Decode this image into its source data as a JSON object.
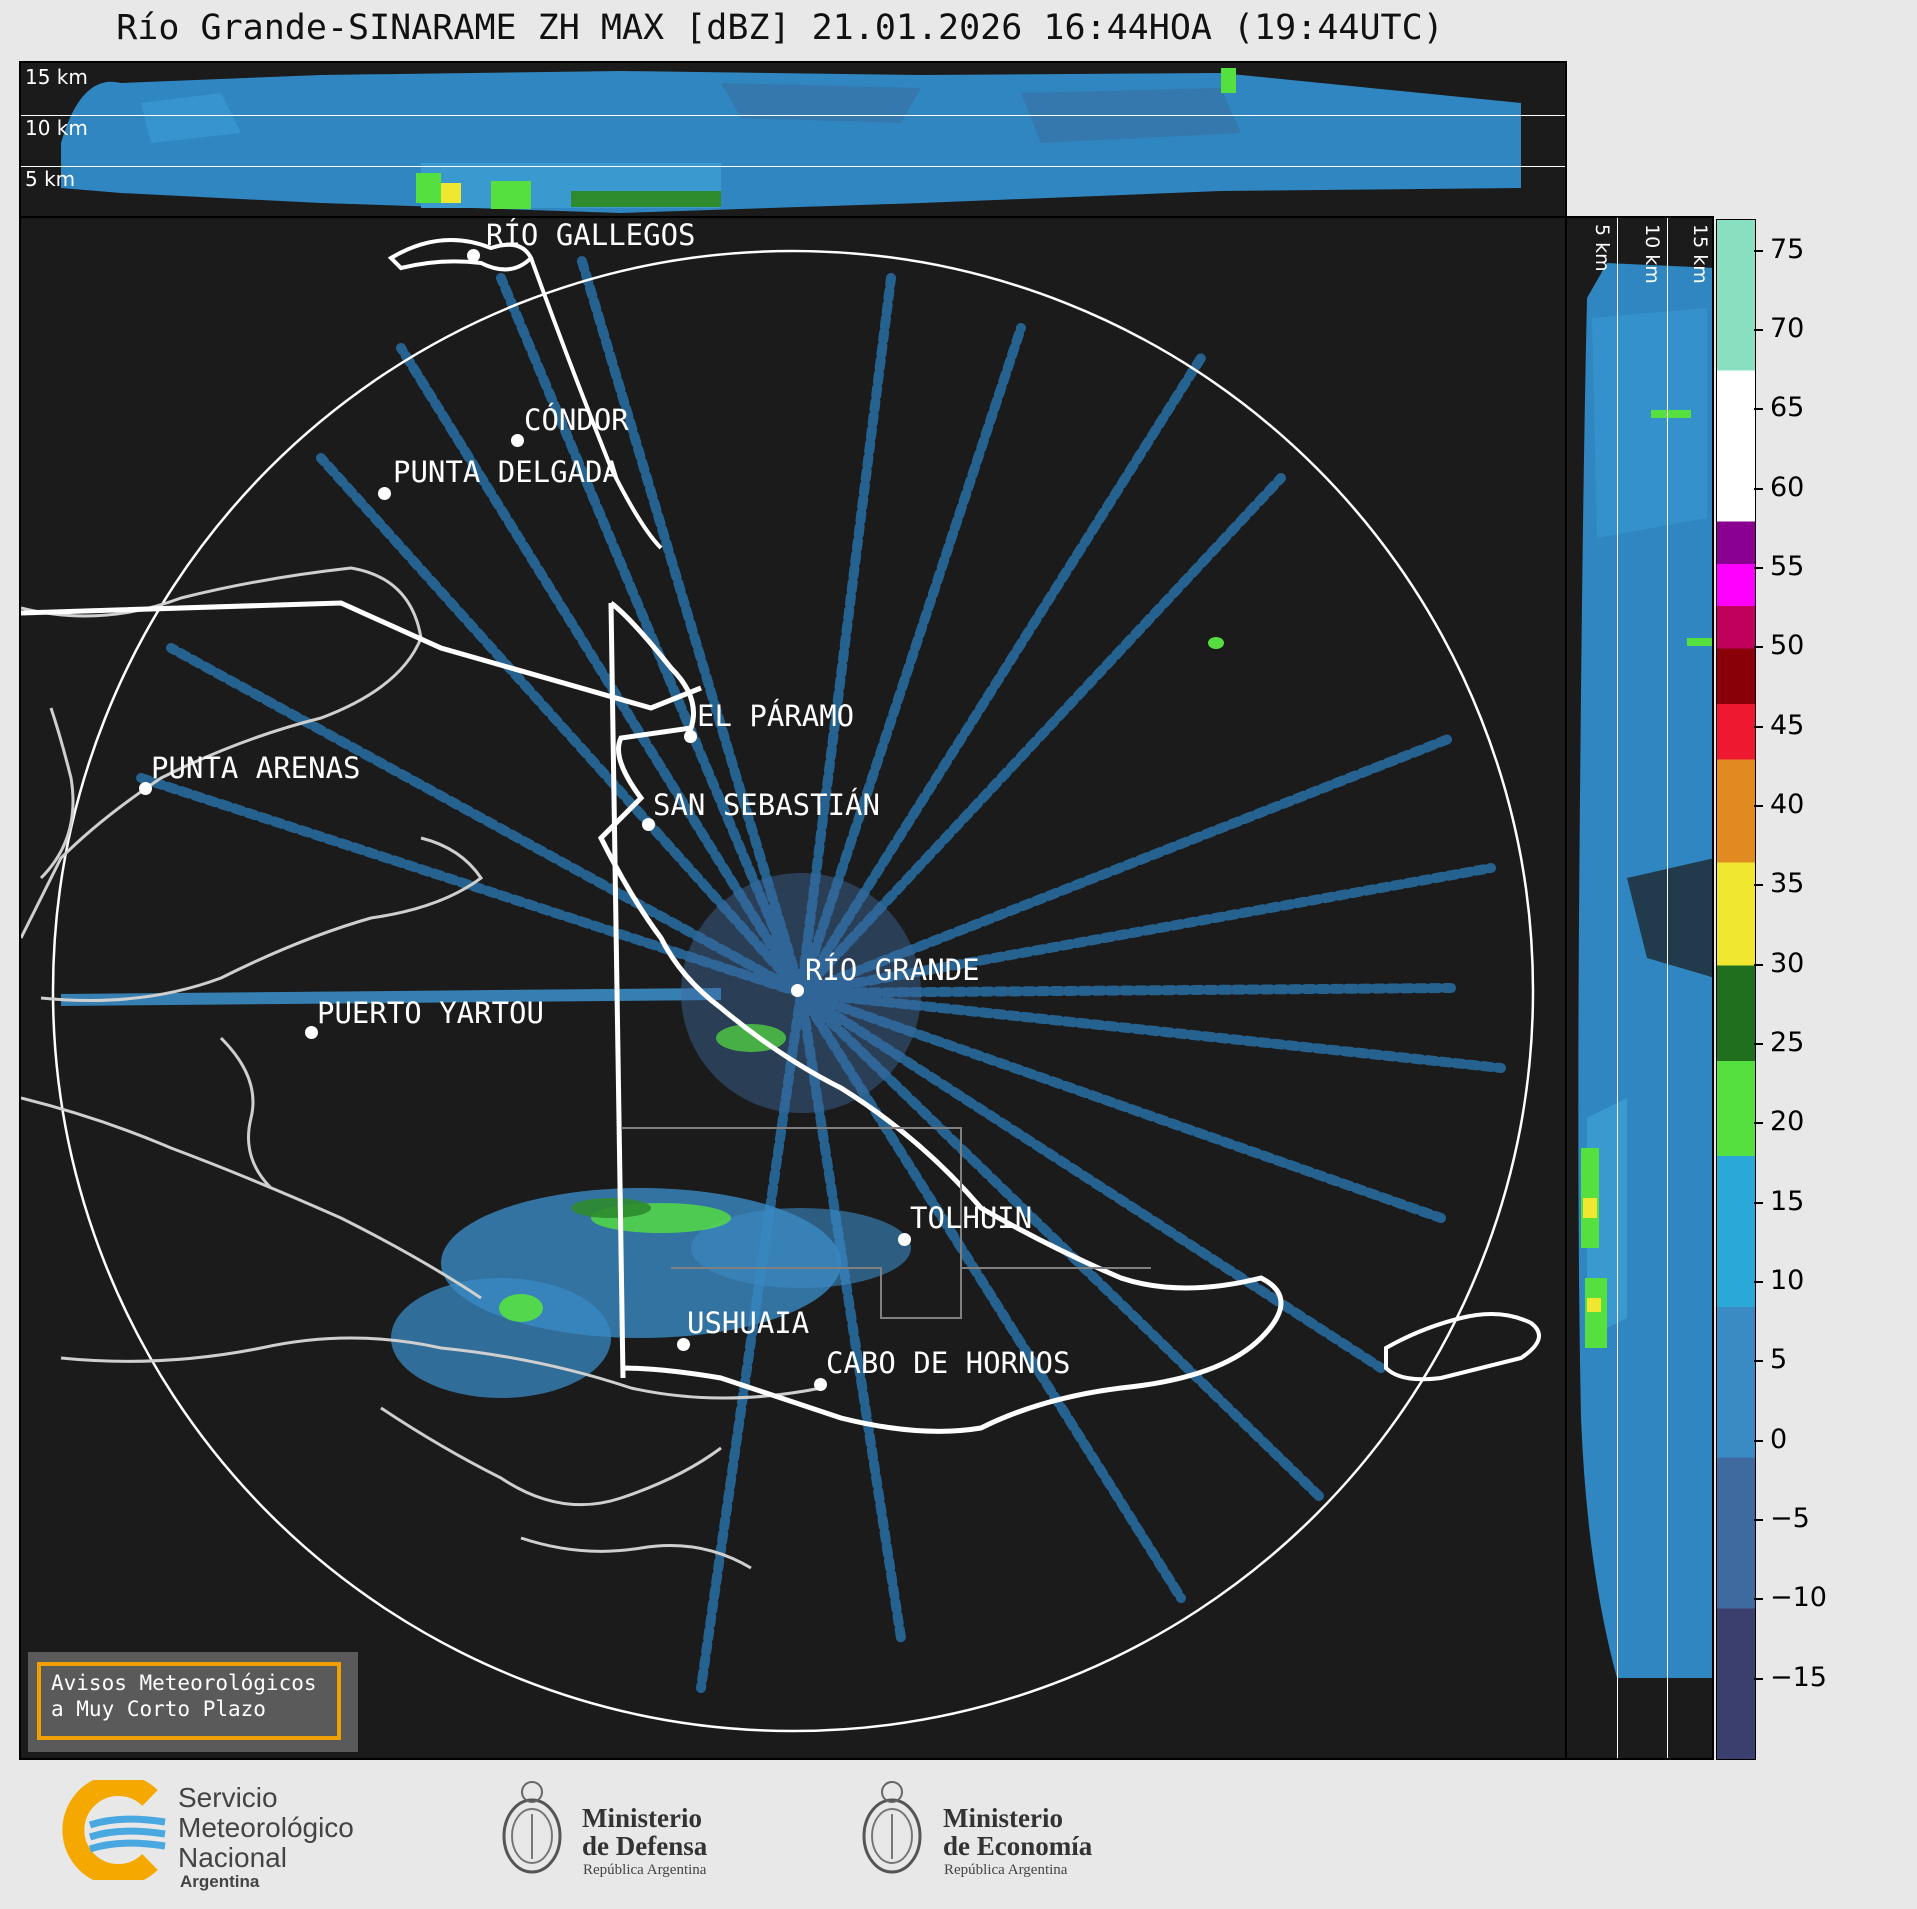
{
  "title": "Río Grande-SINARAME ZH MAX [dBZ] 21.01.2026 16:44HOA (19:44UTC)",
  "top_panel": {
    "heights": [
      "15 km",
      "10 km",
      "5 km"
    ]
  },
  "side_panel": {
    "heights": [
      "5 km",
      "10 km",
      "15 km"
    ]
  },
  "cities": [
    {
      "name": "RÍO GALLEGOS"
    },
    {
      "name": "CÓNDOR"
    },
    {
      "name": "PUNTA DELGADA"
    },
    {
      "name": "EL PÁRAMO"
    },
    {
      "name": "PUNTA ARENAS"
    },
    {
      "name": "SAN SEBASTIÁN"
    },
    {
      "name": "RÍO GRANDE"
    },
    {
      "name": "PUERTO YARTOU"
    },
    {
      "name": "TOLHUIN"
    },
    {
      "name": "USHUAIA"
    },
    {
      "name": "CABO DE HORNOS"
    }
  ],
  "colorbar": {
    "unit": "dBZ",
    "ticks": [
      "75",
      "70",
      "65",
      "60",
      "55",
      "50",
      "45",
      "40",
      "35",
      "30",
      "25",
      "20",
      "15",
      "10",
      "5",
      "0",
      "−5",
      "−10",
      "−15"
    ],
    "range": [
      -20,
      77
    ],
    "bands": [
      {
        "from": -20,
        "to": 18,
        "color": "#3a7ab8",
        "colors": [
          "#3b3f6e",
          "#3e6aa0",
          "#3a8ac4",
          "#2aa8d8"
        ]
      },
      {
        "from": 18,
        "to": 30,
        "color": "#2e8b2e",
        "colors": [
          "#55e040",
          "#1f6f1f"
        ]
      },
      {
        "from": 30,
        "to": 43,
        "color": "#d8c020",
        "colors": [
          "#f0e830",
          "#e08a20"
        ]
      },
      {
        "from": 43,
        "to": 50,
        "color": "#c00010",
        "colors": [
          "#ee1830",
          "#8a0008"
        ]
      },
      {
        "from": 50,
        "to": 58,
        "color": "#d000c0",
        "colors": [
          "#c0005a",
          "#ff00ff",
          "#8a0090"
        ]
      },
      {
        "from": 58,
        "to": 77,
        "color": "#b0e8d0",
        "colors": [
          "#ffffff",
          "#88e0c0"
        ]
      }
    ]
  },
  "warning": {
    "line1": "Avisos Meteorológicos",
    "line2": "a Muy Corto Plazo"
  },
  "logos": {
    "smn": {
      "line1": "Servicio",
      "line2": "Meteorológico",
      "line3": "Nacional",
      "line4": "Argentina"
    },
    "defensa": {
      "line1": "Ministerio",
      "line2": "de Defensa",
      "line3": "República Argentina"
    },
    "economia": {
      "line1": "Ministerio",
      "line2": "de Economía",
      "line3": "República Argentina"
    }
  }
}
